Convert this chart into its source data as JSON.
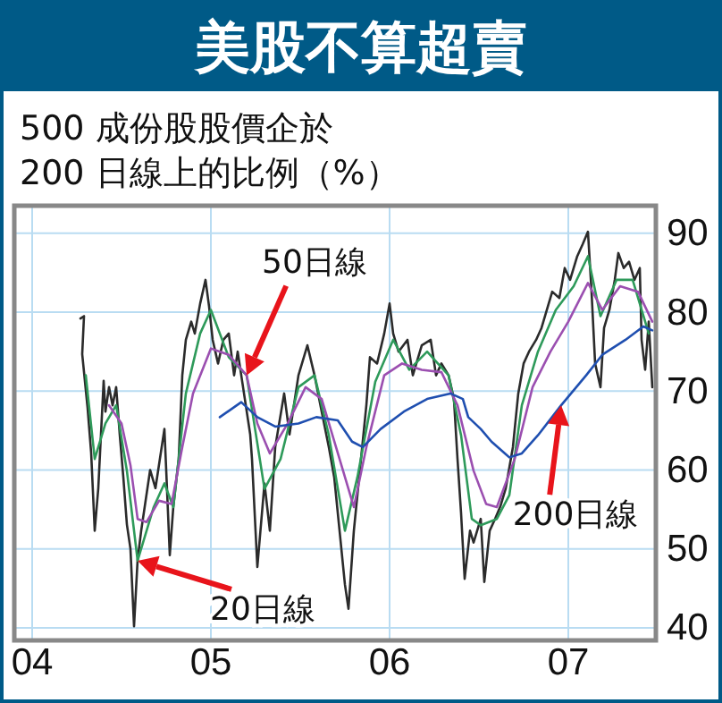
{
  "chart_data": {
    "type": "line",
    "title": "美股不算超賣",
    "subtitle": "500 成份股股價企於\n200 日線上的比例（%）",
    "xlim": [
      2003.9,
      2007.49
    ],
    "ylim": [
      38.4,
      93.5
    ],
    "xticks": [
      {
        "value": 2004,
        "label": "04"
      },
      {
        "value": 2005,
        "label": "05"
      },
      {
        "value": 2006,
        "label": "06"
      },
      {
        "value": 2007,
        "label": "07"
      }
    ],
    "yticks": [
      40,
      50,
      60,
      70,
      80,
      90
    ],
    "grid": true,
    "marker": "none",
    "line_style": "solid",
    "series": [
      {
        "color": "#2b2b2b",
        "x": [
          2004.27,
          2004.29,
          2004.28,
          2004.31,
          2004.33,
          2004.35,
          2004.37,
          2004.4,
          2004.41,
          2004.43,
          2004.45,
          2004.47,
          2004.49,
          2004.51,
          2004.53,
          2004.55,
          2004.57,
          2004.59,
          2004.61,
          2004.66,
          2004.69,
          2004.74,
          2004.75,
          2004.77,
          2004.79,
          2004.82,
          2004.84,
          2004.86,
          2004.89,
          2004.91,
          2004.94,
          2004.97,
          2004.99,
          2005.01,
          2005.04,
          2005.07,
          2005.1,
          2005.13,
          2005.15,
          2005.18,
          2005.22,
          2005.23,
          2005.26,
          2005.3,
          2005.33,
          2005.36,
          2005.41,
          2005.44,
          2005.49,
          2005.54,
          2005.58,
          2005.62,
          2005.66,
          2005.69,
          2005.72,
          2005.75,
          2005.77,
          2005.8,
          2005.84,
          2005.87,
          2005.89,
          2005.93,
          2005.97,
          2006.0,
          2006.02,
          2006.05,
          2006.1,
          2006.13,
          2006.18,
          2006.23,
          2006.26,
          2006.29,
          2006.33,
          2006.36,
          2006.38,
          2006.4,
          2006.42,
          2006.45,
          2006.47,
          2006.51,
          2006.53,
          2006.56,
          2006.59,
          2006.62,
          2006.65,
          2006.69,
          2006.72,
          2006.75,
          2006.78,
          2006.82,
          2006.85,
          2006.88,
          2006.91,
          2006.95,
          2006.98,
          2007.01,
          2007.05,
          2007.08,
          2007.11,
          2007.13,
          2007.15,
          2007.18,
          2007.2,
          2007.23,
          2007.26,
          2007.28,
          2007.31,
          2007.34,
          2007.37,
          2007.4,
          2007.41,
          2007.43,
          2007.45,
          2007.47
        ],
        "values": [
          79.2,
          79.5,
          74.7,
          67.9,
          62.2,
          52.3,
          57.7,
          71.3,
          67.4,
          70.5,
          68.2,
          70.5,
          64.5,
          59.1,
          53.1,
          50,
          40.2,
          48.6,
          52.3,
          60,
          57.7,
          65.2,
          60,
          49.2,
          55.4,
          61.4,
          72,
          76.5,
          78.8,
          77.3,
          81.1,
          84.1,
          80.7,
          76.5,
          73.5,
          76.5,
          77.3,
          72,
          75,
          70.5,
          64.5,
          61.4,
          47.7,
          58.3,
          52.3,
          62.9,
          69.7,
          64.5,
          72,
          75.8,
          72,
          67.4,
          62.9,
          59.1,
          52.3,
          45.5,
          42.4,
          52.3,
          61.4,
          68.2,
          74.3,
          73.5,
          77.3,
          81.1,
          77.3,
          75,
          76.5,
          72,
          75.8,
          76.5,
          72,
          73.5,
          72,
          69,
          61.4,
          54.5,
          46.2,
          52.3,
          50.8,
          53.8,
          45.8,
          52.3,
          53.8,
          55.4,
          57.7,
          62.9,
          69.7,
          73.5,
          75,
          76.5,
          78,
          80.3,
          82.6,
          81.8,
          85.6,
          84.1,
          87.1,
          88.6,
          90.2,
          82.6,
          73.5,
          70.5,
          78,
          80.3,
          84.1,
          87.5,
          85.6,
          86.4,
          84.1,
          85.6,
          76.5,
          72.7,
          78.8,
          70.5
        ]
      },
      {
        "color": "#2e9a5a",
        "x": [
          2004.3,
          2004.35,
          2004.41,
          2004.47,
          2004.53,
          2004.59,
          2004.68,
          2004.74,
          2004.79,
          2004.86,
          2004.94,
          2005.0,
          2005.1,
          2005.2,
          2005.3,
          2005.39,
          2005.49,
          2005.58,
          2005.66,
          2005.75,
          2005.82,
          2005.92,
          2006.02,
          2006.11,
          2006.21,
          2006.33,
          2006.4,
          2006.46,
          2006.51,
          2006.6,
          2006.67,
          2006.74,
          2006.83,
          2006.93,
          2007.03,
          2007.11,
          2007.18,
          2007.27,
          2007.36,
          2007.45
        ],
        "values": [
          72,
          61.4,
          65.9,
          68.2,
          59.9,
          48.5,
          55.3,
          58.3,
          55.3,
          69.7,
          77.3,
          80.3,
          74.3,
          72,
          57.6,
          61.4,
          70.5,
          72,
          64.4,
          52.3,
          59.1,
          71.2,
          76.5,
          72.7,
          75,
          72,
          64.4,
          53.8,
          53,
          53.8,
          56.8,
          68.2,
          75,
          80.3,
          83.3,
          87.1,
          79.5,
          84.1,
          84.1,
          77.3
        ]
      },
      {
        "color": "#9b4fb0",
        "x": [
          2004.43,
          2004.5,
          2004.55,
          2004.59,
          2004.64,
          2004.71,
          2004.78,
          2004.84,
          2004.9,
          2005.0,
          2005.1,
          2005.2,
          2005.26,
          2005.33,
          2005.43,
          2005.53,
          2005.62,
          2005.72,
          2005.8,
          2005.87,
          2005.97,
          2006.07,
          2006.18,
          2006.29,
          2006.38,
          2006.47,
          2006.54,
          2006.6,
          2006.7,
          2006.8,
          2006.9,
          2007.0,
          2007.11,
          2007.19,
          2007.29,
          2007.39,
          2007.47
        ],
        "values": [
          68.2,
          65.9,
          60.6,
          53.8,
          53.4,
          56.1,
          55.7,
          62.9,
          69.7,
          75.4,
          74.6,
          72,
          65.9,
          62.1,
          65.9,
          70.5,
          69,
          61.4,
          55.3,
          62.9,
          72,
          73.5,
          72.7,
          72.4,
          68.2,
          59.9,
          55.7,
          55.3,
          61.4,
          70.5,
          75,
          78.8,
          83.7,
          80.3,
          83.3,
          82.6,
          78.8
        ]
      },
      {
        "color": "#1f4fb0",
        "x": [
          2005.05,
          2005.17,
          2005.26,
          2005.36,
          2005.49,
          2005.59,
          2005.71,
          2005.79,
          2005.85,
          2005.95,
          2006.08,
          2006.21,
          2006.34,
          2006.41,
          2006.44,
          2006.51,
          2006.57,
          2006.67,
          2006.74,
          2006.83,
          2006.96,
          2007.1,
          2007.19,
          2007.32,
          2007.42,
          2007.47
        ],
        "values": [
          66.7,
          68.6,
          66.7,
          65.5,
          65.9,
          66.7,
          66.3,
          63.6,
          62.9,
          65.2,
          67.4,
          69,
          69.7,
          69,
          66.7,
          65.2,
          63.6,
          61.6,
          62.1,
          64.4,
          68.2,
          72,
          74.6,
          76.5,
          78.2,
          77.7
        ]
      }
    ],
    "annotations": [
      {
        "text": "50日線",
        "x": 2005.2,
        "y": 72
      },
      {
        "text": "20日線",
        "x": 2004.59,
        "y": 48.5
      },
      {
        "text": "200日線",
        "x": 2006.96,
        "y": 68.2
      }
    ]
  }
}
